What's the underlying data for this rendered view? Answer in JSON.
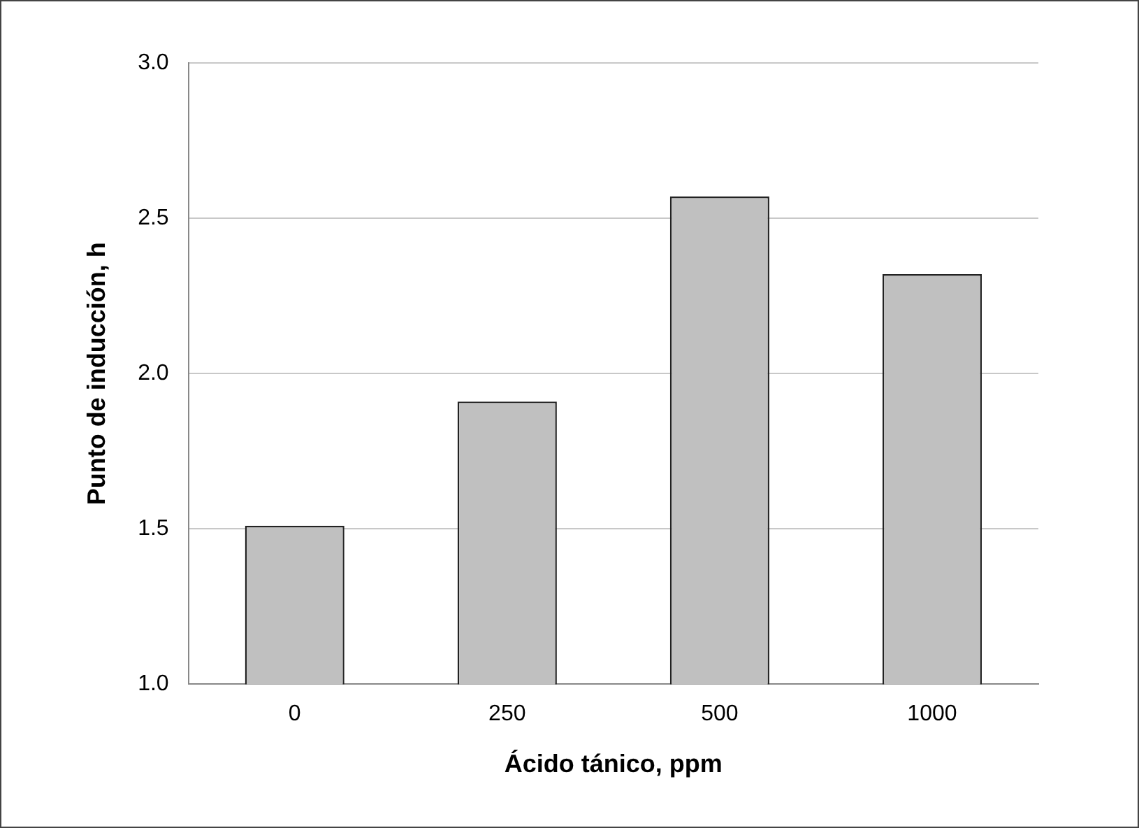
{
  "chart_data": {
    "type": "bar",
    "xlabel": "Ácido tánico, ppm",
    "ylabel": "Punto de inducción, h",
    "categories": [
      "0",
      "250",
      "500",
      "1000"
    ],
    "values": [
      1.51,
      1.91,
      2.57,
      2.32
    ],
    "color": "#c0c0c0",
    "ylim": [
      1.0,
      3.0
    ],
    "yticks": [
      {
        "value": 1.0,
        "label": "1.0"
      },
      {
        "value": 1.5,
        "label": "1.5"
      },
      {
        "value": 2.0,
        "label": "2.0"
      },
      {
        "value": 2.5,
        "label": "2.5"
      },
      {
        "value": 3.0,
        "label": "3.0"
      }
    ],
    "grid": "y",
    "legend": false
  }
}
